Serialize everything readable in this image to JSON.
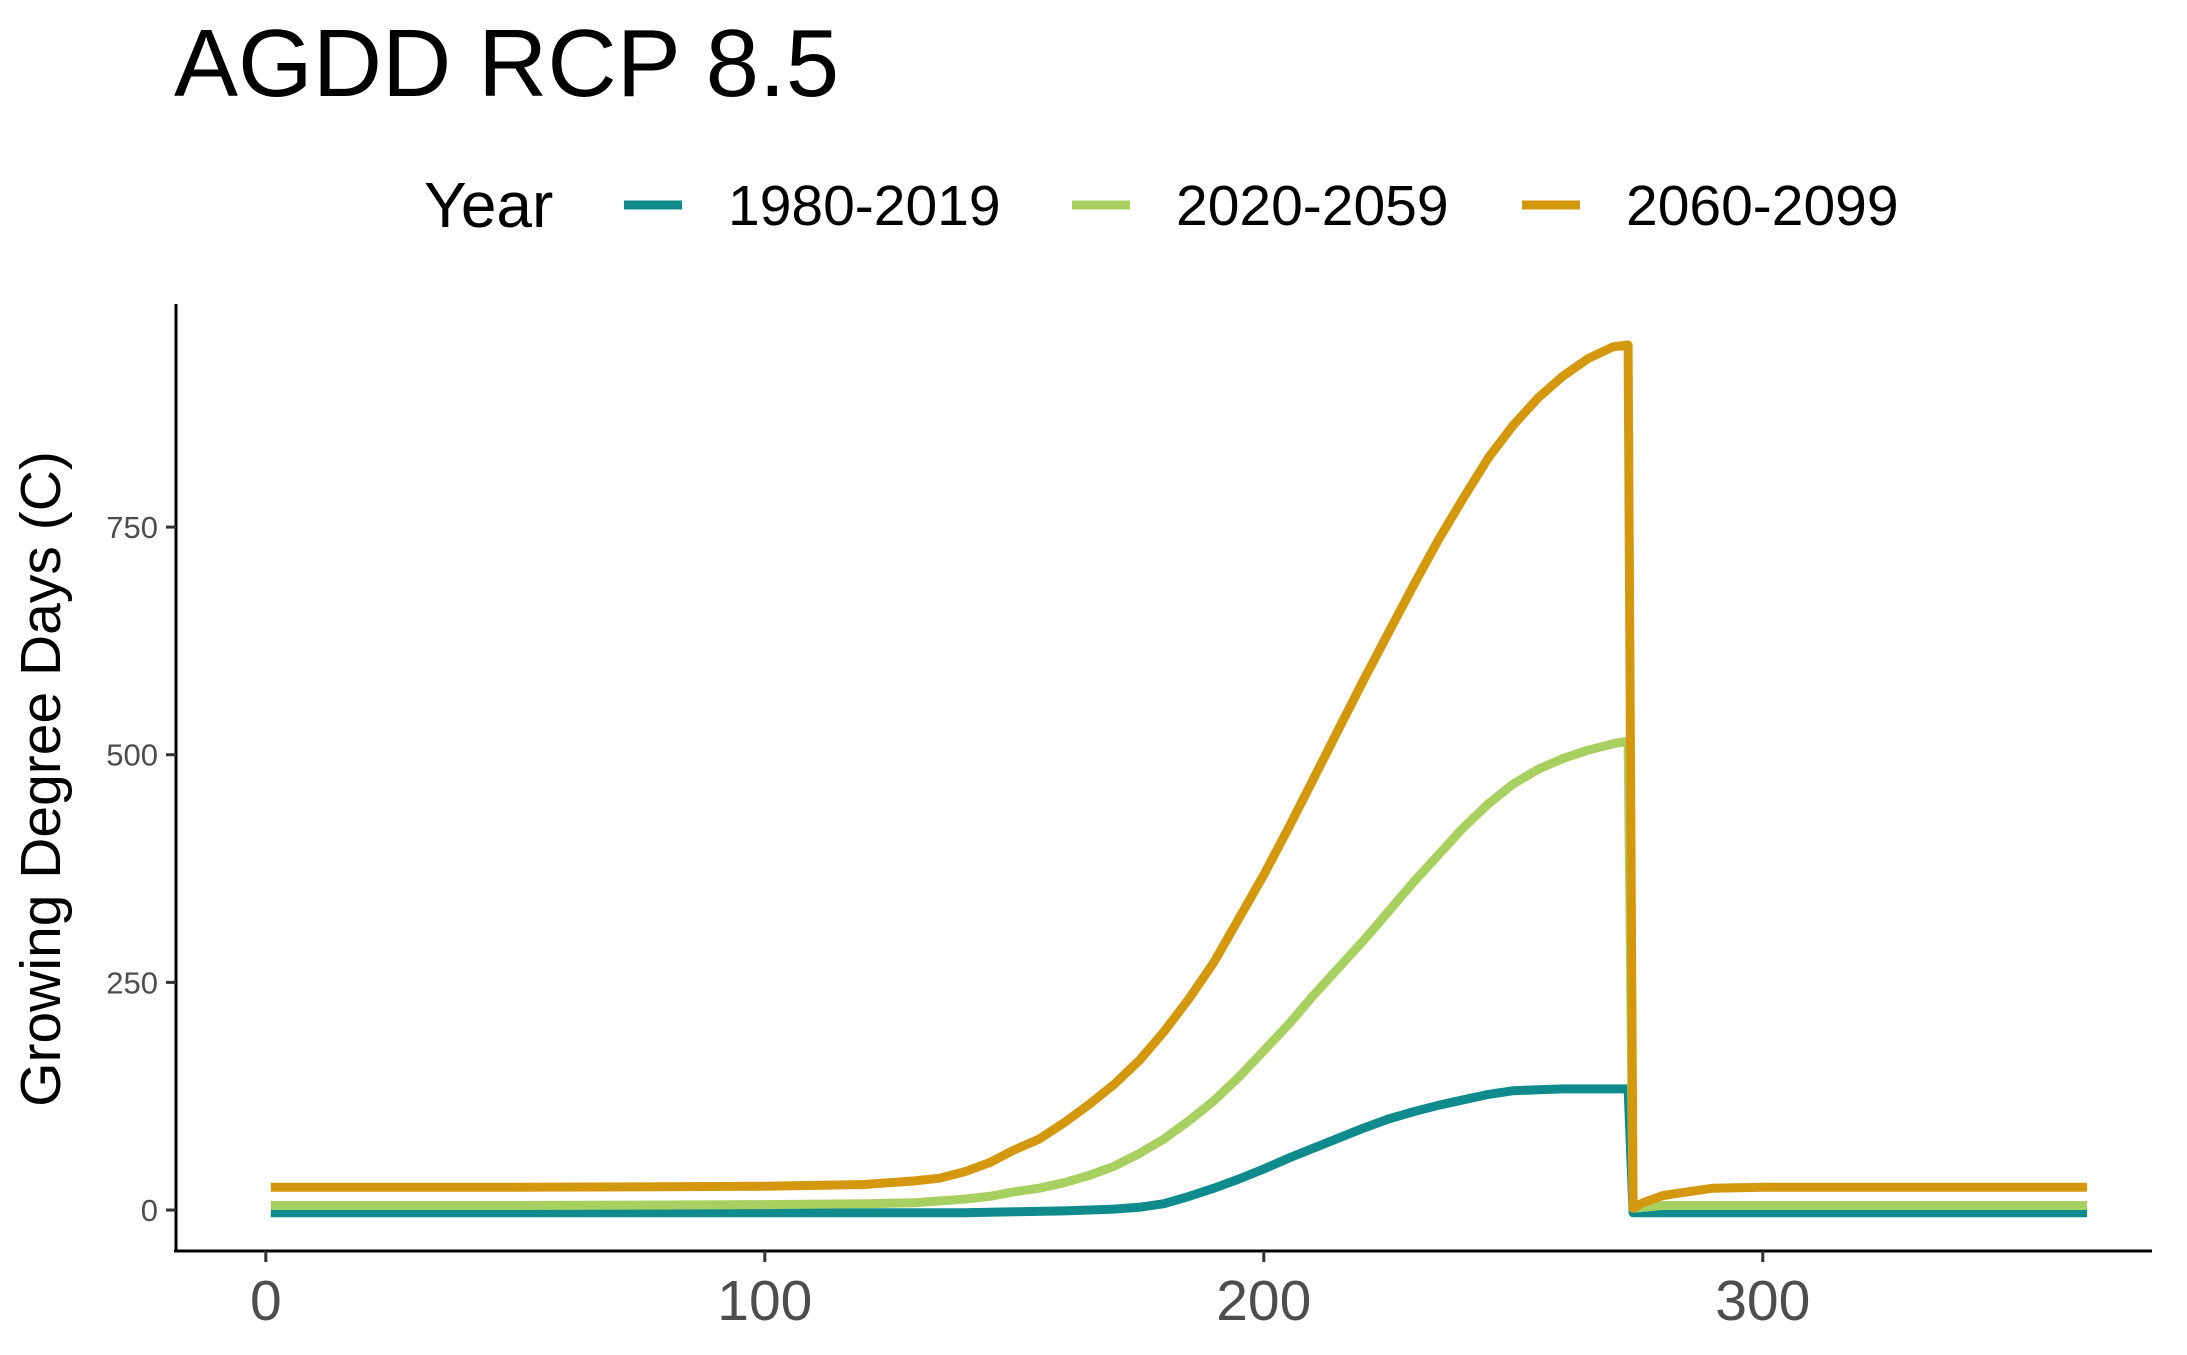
{
  "chart_data": {
    "type": "line",
    "title": "AGDD RCP 8.5",
    "xlabel": "",
    "ylabel": "Growing Degree Days (C)",
    "xlim": [
      -18,
      378
    ],
    "ylim": [
      -45,
      995
    ],
    "x_ticks": [
      0,
      100,
      200,
      300
    ],
    "x_tick_labels": [
      "0",
      "100",
      "200",
      "300"
    ],
    "y_ticks": [
      0,
      250,
      500,
      750
    ],
    "y_tick_labels": [
      "0",
      "250",
      "500",
      "750"
    ],
    "grid": false,
    "legend": {
      "title": "Year",
      "position": "top"
    },
    "series": [
      {
        "name": "1980-2019",
        "color": "#0f8b8d",
        "x": [
          1,
          50,
          100,
          140,
          150,
          160,
          170,
          175,
          180,
          185,
          190,
          195,
          200,
          205,
          210,
          215,
          220,
          225,
          230,
          235,
          240,
          245,
          250,
          255,
          260,
          265,
          270,
          273,
          274,
          280,
          300,
          320,
          340,
          365
        ],
        "y": [
          -3,
          -3,
          -3,
          -3,
          -2,
          -1,
          1,
          3,
          7,
          15,
          24,
          34,
          45,
          57,
          68,
          79,
          90,
          100,
          108,
          115,
          121,
          127,
          131,
          132,
          133,
          133,
          133,
          133,
          -3,
          -3,
          -3,
          -3,
          -3,
          -3
        ]
      },
      {
        "name": "2020-2059",
        "color": "#a8d060",
        "x": [
          1,
          50,
          100,
          120,
          130,
          140,
          145,
          150,
          155,
          160,
          165,
          170,
          175,
          180,
          185,
          190,
          195,
          200,
          205,
          210,
          215,
          220,
          225,
          230,
          235,
          240,
          245,
          250,
          255,
          260,
          265,
          270,
          273,
          274,
          280,
          300,
          320,
          340,
          365
        ],
        "y": [
          5,
          5,
          6,
          7,
          8,
          12,
          15,
          20,
          24,
          30,
          38,
          48,
          62,
          78,
          98,
          120,
          146,
          175,
          204,
          236,
          266,
          296,
          328,
          360,
          390,
          420,
          446,
          468,
          484,
          496,
          505,
          512,
          515,
          2,
          5,
          5,
          5,
          5,
          5
        ]
      },
      {
        "name": "2060-2099",
        "color": "#d4980f",
        "x": [
          1,
          50,
          100,
          110,
          120,
          130,
          135,
          140,
          145,
          150,
          155,
          160,
          165,
          170,
          175,
          180,
          185,
          190,
          195,
          200,
          205,
          210,
          215,
          220,
          225,
          230,
          235,
          240,
          245,
          250,
          255,
          260,
          265,
          270,
          273,
          274,
          276,
          280,
          285,
          290,
          300,
          320,
          340,
          365
        ],
        "y": [
          25,
          25,
          26,
          27,
          28,
          32,
          35,
          42,
          52,
          66,
          78,
          96,
          116,
          138,
          164,
          196,
          232,
          272,
          320,
          368,
          420,
          474,
          528,
          582,
          634,
          686,
          736,
          782,
          826,
          862,
          892,
          916,
          935,
          948,
          950,
          2,
          8,
          16,
          20,
          24,
          25,
          25,
          25,
          25
        ]
      }
    ]
  }
}
